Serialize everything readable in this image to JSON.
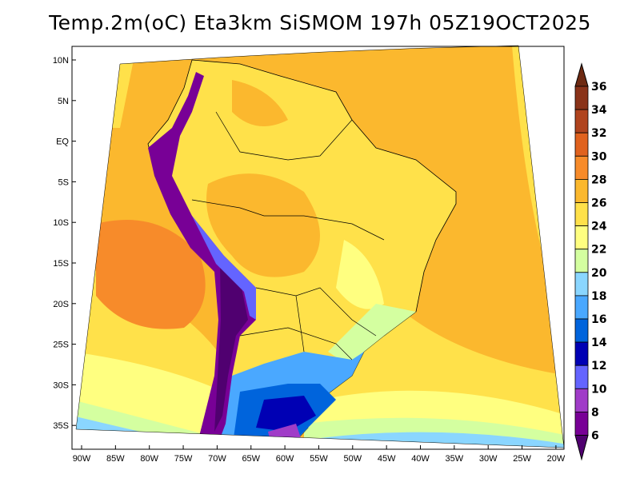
{
  "title": "Temp.2m(oC) Eta3km SiSMOM 197h 05Z19OCT2025",
  "map": {
    "lat_labels": [
      "10N",
      "5N",
      "EQ",
      "5S",
      "10S",
      "15S",
      "20S",
      "25S",
      "30S",
      "35S"
    ],
    "lon_labels": [
      "90W",
      "85W",
      "80W",
      "75W",
      "70W",
      "65W",
      "60W",
      "55W",
      "50W",
      "45W",
      "40W",
      "35W",
      "30W",
      "25W",
      "20W"
    ]
  },
  "colorbar": {
    "labels": [
      "36",
      "34",
      "32",
      "30",
      "28",
      "26",
      "24",
      "22",
      "20",
      "18",
      "16",
      "14",
      "12",
      "10",
      "8",
      "6"
    ],
    "colors_high_to_low": [
      "#8a3319",
      "#b0441e",
      "#e0621e",
      "#f78b2a",
      "#fbb82e",
      "#ffe14a",
      "#ffff80",
      "#d4ffa0",
      "#8ad6ff",
      "#4aa8ff",
      "#0064dc",
      "#0000b4",
      "#6464ff",
      "#a03cc8",
      "#780096"
    ],
    "over_color": "#6e2a12",
    "under_color": "#500070"
  }
}
